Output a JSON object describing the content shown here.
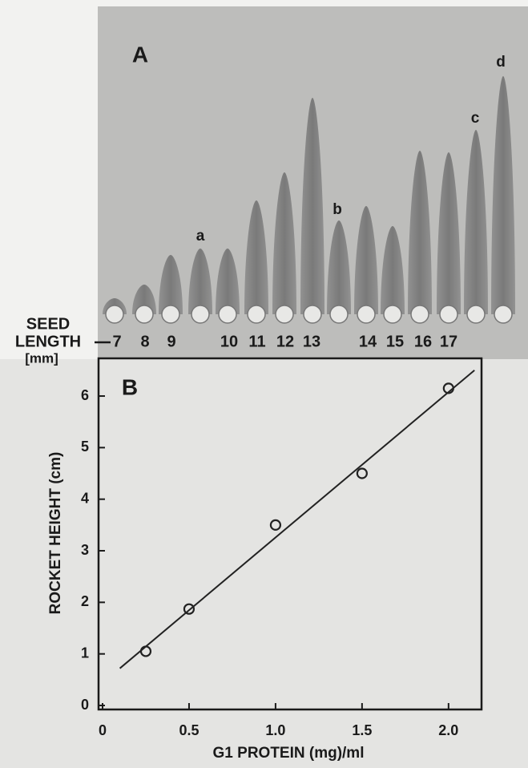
{
  "panel_a": {
    "label": "A",
    "axis_label": [
      "SEED",
      "LENGTH",
      "[mm]"
    ],
    "seed_lengths": [
      7,
      8,
      9,
      10,
      11,
      12,
      13,
      14,
      15,
      16,
      17
    ],
    "rocket_labels": [
      "a",
      "b",
      "c",
      "d"
    ]
  },
  "chart_data": {
    "type": "scatter",
    "panel_label": "B",
    "x_label": "G1 PROTEIN (mg)/ml",
    "y_label": "ROCKET HEIGHT (cm)",
    "x": [
      0.25,
      0.5,
      1.0,
      1.5,
      2.0
    ],
    "values": [
      1.05,
      1.87,
      3.5,
      4.5,
      6.15
    ],
    "fit_line": {
      "x": [
        0.1,
        2.15
      ],
      "values": [
        0.72,
        6.5
      ]
    },
    "color": "#222222",
    "xlim": [
      0,
      2.2
    ],
    "ylim": [
      0,
      6.7
    ],
    "xticks": [
      0,
      0.5,
      {
        "value": 1,
        "label": "1.0"
      },
      1.5,
      {
        "value": 2,
        "label": "2.0"
      }
    ],
    "yticks": [
      0,
      1,
      2,
      3,
      4,
      5,
      6
    ]
  }
}
